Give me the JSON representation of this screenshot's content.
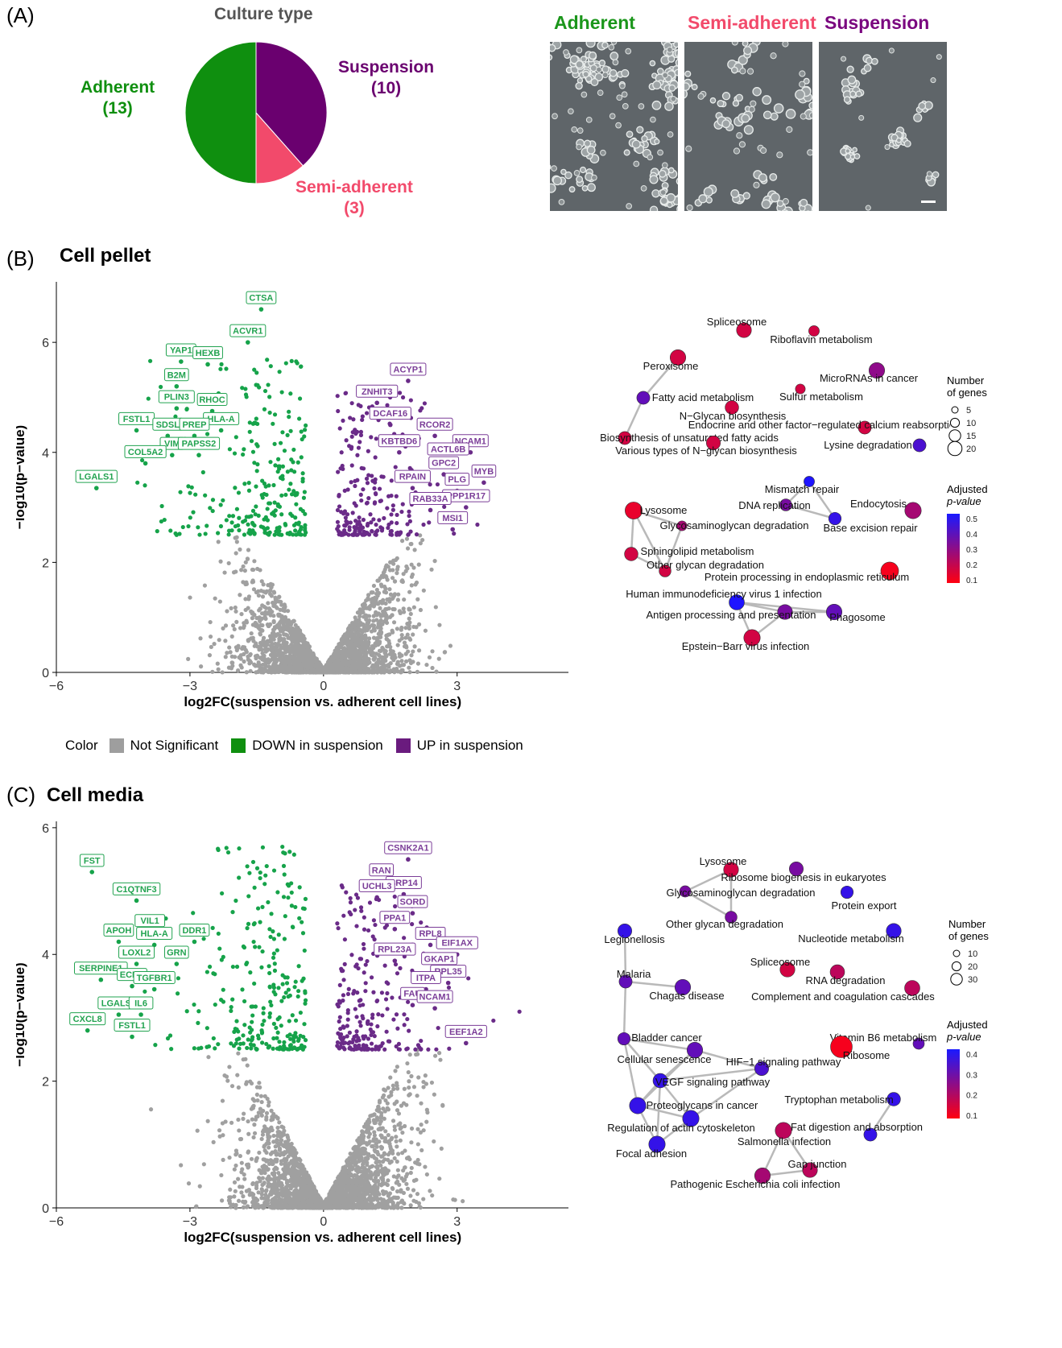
{
  "panelA": {
    "letter": "(A)",
    "pie_title": "Culture type",
    "slices": [
      {
        "name": "Adherent",
        "count": "(13)",
        "value": 13,
        "color": "#0f8f0f"
      },
      {
        "name": "Suspension",
        "count": "(10)",
        "value": 10,
        "color": "#6a006f"
      },
      {
        "name": "Semi-adherent",
        "count": "(3)",
        "value": 3,
        "color": "#f24a6b"
      }
    ],
    "micro_titles": [
      "Adherent",
      "Semi-adherent",
      "Suspension"
    ],
    "micro_colors": [
      "#1b961b",
      "#f24a6b",
      "#7a067f"
    ]
  },
  "panelB": {
    "letter": "(B)",
    "title": "Cell pellet",
    "legend": {
      "title": "Color",
      "items": [
        {
          "label": "Not Significant",
          "color": "#9e9e9e"
        },
        {
          "label": "DOWN in suspension",
          "color": "#0f8f0f"
        },
        {
          "label": "UP in suspension",
          "color": "#6a1b7e"
        }
      ]
    },
    "network_size_legend": {
      "title_line1": "Number",
      "title_line2": "of genes",
      "values": [
        "5",
        "10",
        "15",
        "20"
      ]
    },
    "network_color_legend": {
      "title_line1": "Adjusted",
      "title_line2": "p-value",
      "ticks": [
        "0.5",
        "0.4",
        "0.3",
        "0.2",
        "0.1"
      ]
    }
  },
  "panelC": {
    "letter": "(C)",
    "title": "Cell media",
    "network_size_legend": {
      "title_line1": "Number",
      "title_line2": "of genes",
      "values": [
        "10",
        "20",
        "30"
      ]
    },
    "network_color_legend": {
      "title_line1": "Adjusted",
      "title_line2": "p-value",
      "ticks": [
        "0.4",
        "0.3",
        "0.2",
        "0.1"
      ]
    }
  },
  "chart_data": [
    {
      "type": "pie",
      "title": "Culture type",
      "categories": [
        "Adherent",
        "Suspension",
        "Semi-adherent"
      ],
      "values": [
        13,
        10,
        3
      ]
    },
    {
      "type": "scatter",
      "title": "Cell pellet",
      "xlabel": "log2FC(suspension vs. adherent cell lines)",
      "ylabel": "−log10(p−value)",
      "xlim": [
        -6,
        5.5
      ],
      "ylim": [
        0,
        7.1
      ],
      "xticks": [
        "−6",
        "−3",
        "0",
        "3"
      ],
      "yticks": [
        "0",
        "2",
        "4",
        "6"
      ],
      "labeled_points": [
        {
          "label": "CTSA",
          "x": -1.4,
          "y": 6.6,
          "group": "down"
        },
        {
          "label": "ACVR1",
          "x": -1.7,
          "y": 6.0,
          "group": "down"
        },
        {
          "label": "YAP1",
          "x": -3.2,
          "y": 5.65,
          "group": "down"
        },
        {
          "label": "HEXB",
          "x": -2.6,
          "y": 5.6,
          "group": "down"
        },
        {
          "label": "B2M",
          "x": -3.3,
          "y": 5.2,
          "group": "down"
        },
        {
          "label": "PLIN3",
          "x": -3.3,
          "y": 4.8,
          "group": "down"
        },
        {
          "label": "RHOC",
          "x": -2.5,
          "y": 4.75,
          "group": "down"
        },
        {
          "label": "FSTL1",
          "x": -4.2,
          "y": 4.4,
          "group": "down"
        },
        {
          "label": "HLA-A",
          "x": -2.3,
          "y": 4.4,
          "group": "down"
        },
        {
          "label": "SDSL",
          "x": -3.5,
          "y": 4.3,
          "group": "down"
        },
        {
          "label": "PREP",
          "x": -2.9,
          "y": 4.3,
          "group": "down"
        },
        {
          "label": "VIM",
          "x": -3.4,
          "y": 3.95,
          "group": "down"
        },
        {
          "label": "PAPSS2",
          "x": -2.8,
          "y": 3.95,
          "group": "down"
        },
        {
          "label": "COL5A2",
          "x": -4.0,
          "y": 3.8,
          "group": "down"
        },
        {
          "label": "LGALS1",
          "x": -5.1,
          "y": 3.35,
          "group": "down"
        },
        {
          "label": "ACYP1",
          "x": 1.9,
          "y": 5.3,
          "group": "up"
        },
        {
          "label": "ZNHIT3",
          "x": 1.2,
          "y": 4.9,
          "group": "up"
        },
        {
          "label": "DCAF16",
          "x": 1.5,
          "y": 4.5,
          "group": "up"
        },
        {
          "label": "RCOR2",
          "x": 2.5,
          "y": 4.3,
          "group": "up"
        },
        {
          "label": "NCAM1",
          "x": 3.3,
          "y": 4.0,
          "group": "up"
        },
        {
          "label": "KBTBD6",
          "x": 1.7,
          "y": 4.0,
          "group": "up"
        },
        {
          "label": "ACTL6B",
          "x": 2.8,
          "y": 3.85,
          "group": "up"
        },
        {
          "label": "GPC2",
          "x": 2.7,
          "y": 3.6,
          "group": "up"
        },
        {
          "label": "RPAIN",
          "x": 2.0,
          "y": 3.35,
          "group": "up"
        },
        {
          "label": "MYB",
          "x": 3.6,
          "y": 3.45,
          "group": "up"
        },
        {
          "label": "PLG",
          "x": 3.0,
          "y": 3.3,
          "group": "up"
        },
        {
          "label": "PPP1R17",
          "x": 3.2,
          "y": 3.0,
          "group": "up"
        },
        {
          "label": "RAB33A",
          "x": 2.4,
          "y": 2.95,
          "group": "up"
        },
        {
          "label": "MSI1",
          "x": 2.9,
          "y": 2.6,
          "group": "up"
        }
      ]
    },
    {
      "type": "scatter",
      "title": "Cell media",
      "xlabel": "log2FC(suspension vs. adherent cell lines)",
      "ylabel": "−log10(p−value)",
      "xlim": [
        -6,
        5.5
      ],
      "ylim": [
        0,
        6.1
      ],
      "xticks": [
        "−6",
        "−3",
        "0",
        "3"
      ],
      "yticks": [
        "0",
        "2",
        "4",
        "6"
      ],
      "labeled_points": [
        {
          "label": "FST",
          "x": -5.2,
          "y": 5.3,
          "group": "down"
        },
        {
          "label": "C1QTNF3",
          "x": -4.2,
          "y": 4.85,
          "group": "down"
        },
        {
          "label": "VIL1",
          "x": -3.9,
          "y": 4.35,
          "group": "down"
        },
        {
          "label": "APOH",
          "x": -4.6,
          "y": 4.2,
          "group": "down"
        },
        {
          "label": "HLA-A",
          "x": -3.8,
          "y": 4.15,
          "group": "down"
        },
        {
          "label": "DDR1",
          "x": -2.9,
          "y": 4.2,
          "group": "down"
        },
        {
          "label": "LOXL2",
          "x": -4.2,
          "y": 3.85,
          "group": "down"
        },
        {
          "label": "GRN",
          "x": -3.3,
          "y": 3.85,
          "group": "down"
        },
        {
          "label": "SERPINE1",
          "x": -5.0,
          "y": 3.6,
          "group": "down"
        },
        {
          "label": "ECM1",
          "x": -4.3,
          "y": 3.5,
          "group": "down"
        },
        {
          "label": "TGFBR1",
          "x": -3.8,
          "y": 3.45,
          "group": "down"
        },
        {
          "label": "LGALS1",
          "x": -4.6,
          "y": 3.05,
          "group": "down"
        },
        {
          "label": "IL6",
          "x": -4.1,
          "y": 3.05,
          "group": "down"
        },
        {
          "label": "CXCL8",
          "x": -5.3,
          "y": 2.8,
          "group": "down"
        },
        {
          "label": "FSTL1",
          "x": -4.3,
          "y": 2.7,
          "group": "down"
        },
        {
          "label": "CSNK2A1",
          "x": 1.9,
          "y": 5.5,
          "group": "up"
        },
        {
          "label": "RAN",
          "x": 1.3,
          "y": 5.15,
          "group": "up"
        },
        {
          "label": "SRP14",
          "x": 1.8,
          "y": 4.95,
          "group": "up"
        },
        {
          "label": "UCHL3",
          "x": 1.2,
          "y": 4.9,
          "group": "up"
        },
        {
          "label": "SORD",
          "x": 2.0,
          "y": 4.65,
          "group": "up"
        },
        {
          "label": "PPA1",
          "x": 1.6,
          "y": 4.4,
          "group": "up"
        },
        {
          "label": "RPL8",
          "x": 2.4,
          "y": 4.15,
          "group": "up"
        },
        {
          "label": "EIF1AX",
          "x": 3.0,
          "y": 4.0,
          "group": "up"
        },
        {
          "label": "RPL23A",
          "x": 1.6,
          "y": 3.9,
          "group": "up"
        },
        {
          "label": "GKAP1",
          "x": 2.6,
          "y": 3.75,
          "group": "up"
        },
        {
          "label": "RPL35",
          "x": 2.8,
          "y": 3.55,
          "group": "up"
        },
        {
          "label": "ITPA",
          "x": 2.3,
          "y": 3.45,
          "group": "up"
        },
        {
          "label": "FAU",
          "x": 2.0,
          "y": 3.2,
          "group": "up"
        },
        {
          "label": "NCAM1",
          "x": 2.5,
          "y": 3.15,
          "group": "up"
        },
        {
          "label": "EEF1A2",
          "x": 3.2,
          "y": 2.6,
          "group": "up"
        }
      ]
    }
  ],
  "networkB": {
    "nodes": [
      {
        "label": "Spliceosome",
        "p": 0.1,
        "size": 12
      },
      {
        "label": "Riboflavin metabolism",
        "p": 0.1,
        "size": 4
      },
      {
        "label": "Peroxisome",
        "p": 0.1,
        "size": 14
      },
      {
        "label": "MicroRNAs in cancer",
        "p": 0.25,
        "size": 14
      },
      {
        "label": "Sulfur metabolism",
        "p": 0.1,
        "size": 3
      },
      {
        "label": "Fatty acid metabolism",
        "p": 0.35,
        "size": 8
      },
      {
        "label": "N−Glycan biosynthesis",
        "p": 0.1,
        "size": 9
      },
      {
        "label": "Endocrine and other factor−regulated calcium reabsorption",
        "p": 0.1,
        "size": 8
      },
      {
        "label": "Biosynthesis of unsaturated fatty acids",
        "p": 0.1,
        "size": 8
      },
      {
        "label": "Lysine degradation",
        "p": 0.4,
        "size": 8
      },
      {
        "label": "Various types of N−glycan biosynthesis",
        "p": 0.1,
        "size": 10
      },
      {
        "label": "Mismatch repair",
        "p": 0.5,
        "size": 4
      },
      {
        "label": "DNA replication",
        "p": 0.3,
        "size": 6
      },
      {
        "label": "Endocytosis",
        "p": 0.2,
        "size": 16
      },
      {
        "label": "Lysosome",
        "p": 0.05,
        "size": 18
      },
      {
        "label": "Glycosaminoglycan degradation",
        "p": 0.2,
        "size": 3
      },
      {
        "label": "Base excision repair",
        "p": 0.45,
        "size": 7
      },
      {
        "label": "Sphingolipid metabolism",
        "p": 0.1,
        "size": 9
      },
      {
        "label": "Other glycan degradation",
        "p": 0.1,
        "size": 6
      },
      {
        "label": "Protein processing in endoplasmic reticulum",
        "p": 0.02,
        "size": 20
      },
      {
        "label": "Human immunodeficiency virus 1 infection",
        "p": 0.5,
        "size": 13
      },
      {
        "label": "Antigen processing and presentation",
        "p": 0.3,
        "size": 12
      },
      {
        "label": "Phagosome",
        "p": 0.35,
        "size": 14
      },
      {
        "label": "Epstein−Barr virus infection",
        "p": 0.1,
        "size": 16
      }
    ]
  },
  "networkC": {
    "nodes": [
      {
        "label": "Lysosome",
        "p": 0.1,
        "size": 12
      },
      {
        "label": "Ribosome biogenesis in eukaryotes",
        "p": 0.3,
        "size": 10
      },
      {
        "label": "Glycosaminoglycan degradation",
        "p": 0.3,
        "size": 5
      },
      {
        "label": "Protein export",
        "p": 0.45,
        "size": 7
      },
      {
        "label": "Other glycan degradation",
        "p": 0.3,
        "size": 6
      },
      {
        "label": "Legionellosis",
        "p": 0.45,
        "size": 10
      },
      {
        "label": "Nucleotide metabolism",
        "p": 0.45,
        "size": 12
      },
      {
        "label": "Spliceosome",
        "p": 0.1,
        "size": 12
      },
      {
        "label": "RNA degradation",
        "p": 0.15,
        "size": 11
      },
      {
        "label": "Malaria",
        "p": 0.35,
        "size": 8
      },
      {
        "label": "Chagas disease",
        "p": 0.35,
        "size": 14
      },
      {
        "label": "Complement and coagulation cascades",
        "p": 0.15,
        "size": 13
      },
      {
        "label": "Bladder cancer",
        "p": 0.35,
        "size": 7
      },
      {
        "label": "Vitamin B6 metabolism",
        "p": 0.35,
        "size": 5
      },
      {
        "label": "Ribosome",
        "p": 0.02,
        "size": 34
      },
      {
        "label": "Cellular senescence",
        "p": 0.35,
        "size": 14
      },
      {
        "label": "HIF−1 signaling pathway",
        "p": 0.4,
        "size": 10
      },
      {
        "label": "VEGF signaling pathway",
        "p": 0.45,
        "size": 11
      },
      {
        "label": "Tryptophan metabolism",
        "p": 0.45,
        "size": 9
      },
      {
        "label": "Proteoglycans in cancer",
        "p": 0.45,
        "size": 16
      },
      {
        "label": "Regulation of actin cytoskeleton",
        "p": 0.45,
        "size": 16
      },
      {
        "label": "Fat digestion and absorption",
        "p": 0.45,
        "size": 8
      },
      {
        "label": "Salmonella infection",
        "p": 0.15,
        "size": 16
      },
      {
        "label": "Focal adhesion",
        "p": 0.45,
        "size": 16
      },
      {
        "label": "Gap junction",
        "p": 0.15,
        "size": 12
      },
      {
        "label": "Pathogenic Escherichia coli infection",
        "p": 0.2,
        "size": 14
      }
    ]
  }
}
